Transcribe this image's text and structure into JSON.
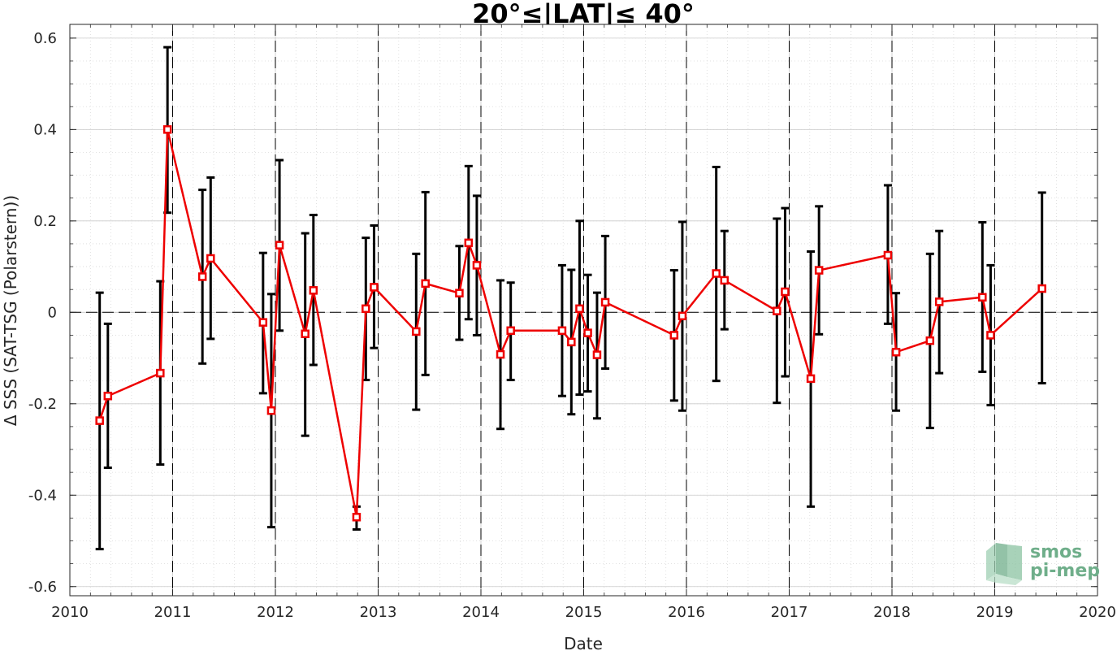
{
  "chart_data": {
    "type": "line",
    "title": "20°≤|LAT|≤ 40°",
    "xlabel": "Date",
    "ylabel": "Δ SSS (SAT-TSG (Polarstern))",
    "xlim": [
      2010,
      2020
    ],
    "ylim": [
      -0.62,
      0.63
    ],
    "x_ticks": [
      "2010",
      "2011",
      "2012",
      "2013",
      "2014",
      "2015",
      "2016",
      "2017",
      "2018",
      "2019",
      "2020"
    ],
    "y_ticks": [
      "0.6",
      "0.4",
      "0.2",
      "0",
      "-0.2",
      "-0.4",
      "-0.6"
    ],
    "grid": true,
    "reference_line_y": 0,
    "year_boundary_lines": [
      2011,
      2012,
      2013,
      2014,
      2015,
      2016,
      2017,
      2018,
      2019
    ],
    "series": [
      {
        "color": "#ee0000",
        "errorbar_color": "#000000",
        "points": [
          {
            "x": 2010.29,
            "y": -0.237,
            "low": -0.518,
            "high": 0.043
          },
          {
            "x": 2010.37,
            "y": -0.183,
            "low": -0.34,
            "high": -0.025
          },
          {
            "x": 2010.88,
            "y": -0.133,
            "low": -0.333,
            "high": 0.068
          },
          {
            "x": 2010.95,
            "y": 0.4,
            "low": 0.218,
            "high": 0.58
          },
          {
            "x": 2011.29,
            "y": 0.078,
            "low": -0.112,
            "high": 0.268
          },
          {
            "x": 2011.37,
            "y": 0.118,
            "low": -0.058,
            "high": 0.295
          },
          {
            "x": 2011.88,
            "y": -0.022,
            "low": -0.177,
            "high": 0.13
          },
          {
            "x": 2011.96,
            "y": -0.215,
            "low": -0.47,
            "high": 0.04
          },
          {
            "x": 2012.04,
            "y": 0.147,
            "low": -0.04,
            "high": 0.333
          },
          {
            "x": 2012.29,
            "y": -0.047,
            "low": -0.27,
            "high": 0.173
          },
          {
            "x": 2012.37,
            "y": 0.048,
            "low": -0.115,
            "high": 0.213
          },
          {
            "x": 2012.79,
            "y": -0.448,
            "low": -0.475,
            "high": -0.425
          },
          {
            "x": 2012.88,
            "y": 0.008,
            "low": -0.148,
            "high": 0.163
          },
          {
            "x": 2012.96,
            "y": 0.055,
            "low": -0.078,
            "high": 0.19
          },
          {
            "x": 2013.37,
            "y": -0.042,
            "low": -0.213,
            "high": 0.128
          },
          {
            "x": 2013.46,
            "y": 0.063,
            "low": -0.137,
            "high": 0.263
          },
          {
            "x": 2013.79,
            "y": 0.042,
            "low": -0.06,
            "high": 0.145
          },
          {
            "x": 2013.88,
            "y": 0.152,
            "low": -0.015,
            "high": 0.32
          },
          {
            "x": 2013.96,
            "y": 0.103,
            "low": -0.05,
            "high": 0.255
          },
          {
            "x": 2014.19,
            "y": -0.092,
            "low": -0.255,
            "high": 0.07
          },
          {
            "x": 2014.29,
            "y": -0.04,
            "low": -0.148,
            "high": 0.065
          },
          {
            "x": 2014.79,
            "y": -0.04,
            "low": -0.183,
            "high": 0.103
          },
          {
            "x": 2014.88,
            "y": -0.065,
            "low": -0.223,
            "high": 0.093
          },
          {
            "x": 2014.96,
            "y": 0.008,
            "low": -0.18,
            "high": 0.2
          },
          {
            "x": 2015.04,
            "y": -0.045,
            "low": -0.173,
            "high": 0.082
          },
          {
            "x": 2015.13,
            "y": -0.093,
            "low": -0.232,
            "high": 0.043
          },
          {
            "x": 2015.21,
            "y": 0.022,
            "low": -0.123,
            "high": 0.167
          },
          {
            "x": 2015.88,
            "y": -0.05,
            "low": -0.193,
            "high": 0.092
          },
          {
            "x": 2015.96,
            "y": -0.008,
            "low": -0.215,
            "high": 0.198
          },
          {
            "x": 2016.29,
            "y": 0.085,
            "low": -0.15,
            "high": 0.318
          },
          {
            "x": 2016.37,
            "y": 0.07,
            "low": -0.037,
            "high": 0.178
          },
          {
            "x": 2016.88,
            "y": 0.003,
            "low": -0.198,
            "high": 0.205
          },
          {
            "x": 2016.96,
            "y": 0.045,
            "low": -0.14,
            "high": 0.228
          },
          {
            "x": 2017.21,
            "y": -0.145,
            "low": -0.425,
            "high": 0.133
          },
          {
            "x": 2017.29,
            "y": 0.092,
            "low": -0.048,
            "high": 0.232
          },
          {
            "x": 2017.96,
            "y": 0.125,
            "low": -0.025,
            "high": 0.278
          },
          {
            "x": 2018.04,
            "y": -0.087,
            "low": -0.215,
            "high": 0.042
          },
          {
            "x": 2018.37,
            "y": -0.062,
            "low": -0.253,
            "high": 0.128
          },
          {
            "x": 2018.46,
            "y": 0.023,
            "low": -0.133,
            "high": 0.178
          },
          {
            "x": 2018.88,
            "y": 0.033,
            "low": -0.13,
            "high": 0.197
          },
          {
            "x": 2018.96,
            "y": -0.05,
            "low": -0.203,
            "high": 0.103
          },
          {
            "x": 2019.46,
            "y": 0.052,
            "low": -0.155,
            "high": 0.262
          }
        ]
      }
    ]
  },
  "logo": {
    "line1": "smos",
    "line2": "pi-mep",
    "color": "#6fae8a"
  }
}
